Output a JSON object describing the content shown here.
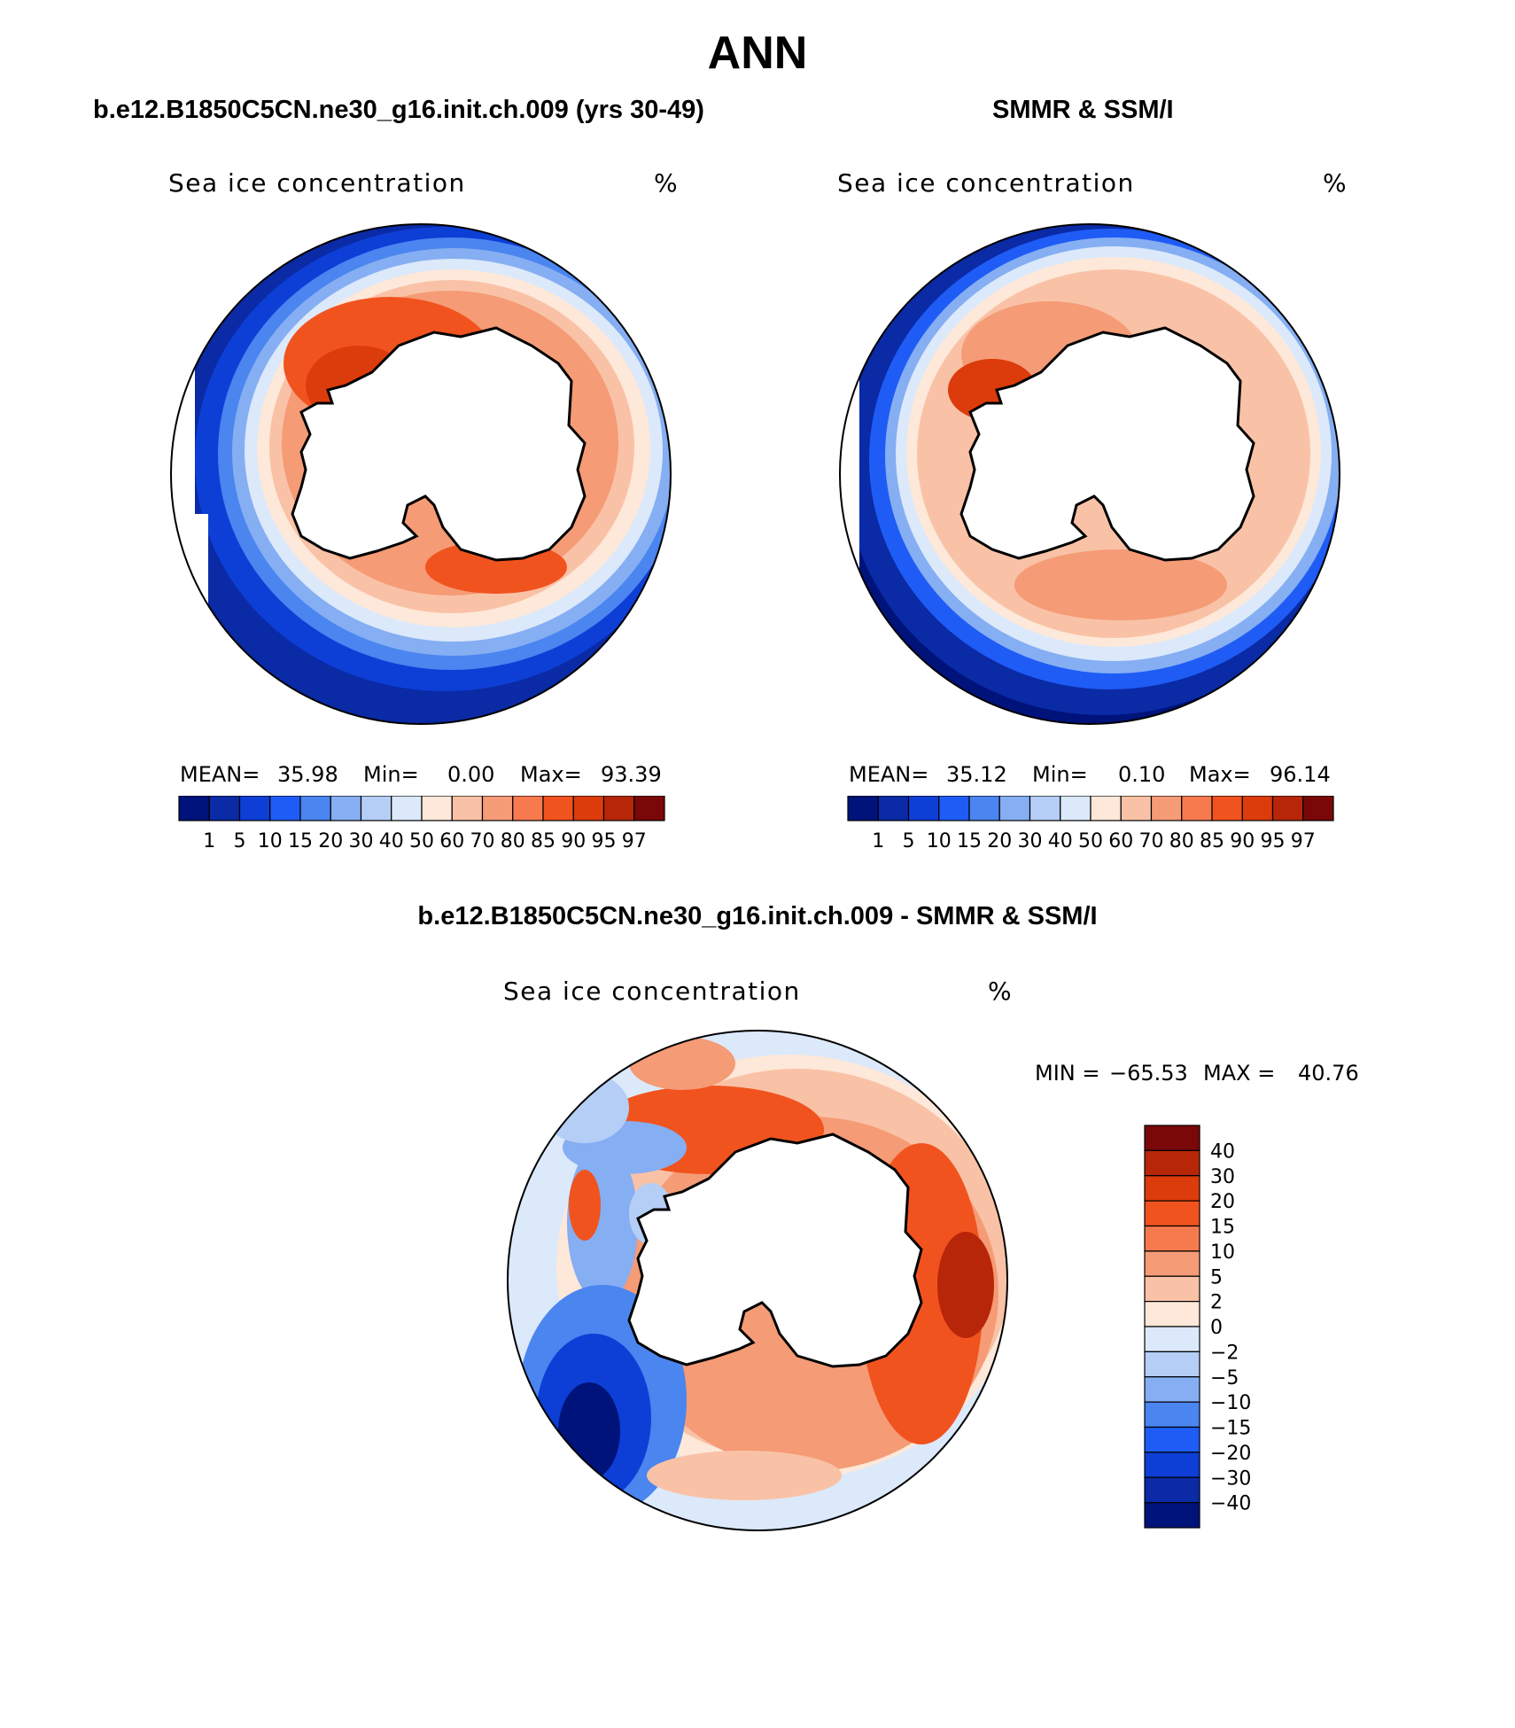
{
  "title": "ANN",
  "colorbar_palette": [
    "#00137a",
    "#0a2aa6",
    "#0d3fd6",
    "#1e5cf5",
    "#4a85f0",
    "#86aef2",
    "#b4cef6",
    "#dbe9fb",
    "#fde8d9",
    "#f9c2a6",
    "#f59b76",
    "#f77a4e",
    "#f1531f",
    "#dc3b0b",
    "#b8260a",
    "#7a0808"
  ],
  "diff_palette": [
    "#00137a",
    "#0a2aa6",
    "#0d3fd6",
    "#1e5cf5",
    "#4a85f0",
    "#86aef2",
    "#b4cef6",
    "#dbe9fb",
    "#fde8d9",
    "#f9c2a6",
    "#f59b76",
    "#f77a4e",
    "#f1531f",
    "#dc3b0b",
    "#b8260a",
    "#7a0808"
  ],
  "chart_data": [
    {
      "type": "heatmap",
      "title": "b.e12.B1850C5CN.ne30_g16.init.ch.009 (yrs 30-49)",
      "variable": "Sea ice concentration",
      "units": "%",
      "mean_label": "MEAN=",
      "mean": "35.98",
      "min_label": "Min=",
      "min": "0.00",
      "max_label": "Max=",
      "max": "93.39",
      "levels": [
        "1",
        "5",
        "10",
        "15",
        "20",
        "30",
        "40",
        "50",
        "60",
        "70",
        "80",
        "85",
        "90",
        "95",
        "97"
      ]
    },
    {
      "type": "heatmap",
      "title": "SMMR & SSM/I",
      "variable": "Sea ice concentration",
      "units": "%",
      "mean_label": "MEAN=",
      "mean": "35.12",
      "min_label": "Min=",
      "min": "0.10",
      "max_label": "Max=",
      "max": "96.14",
      "levels": [
        "1",
        "5",
        "10",
        "15",
        "20",
        "30",
        "40",
        "50",
        "60",
        "70",
        "80",
        "85",
        "90",
        "95",
        "97"
      ]
    },
    {
      "type": "heatmap",
      "title": "b.e12.B1850C5CN.ne30_g16.init.ch.009 - SMMR & SSM/I",
      "variable": "Sea ice concentration",
      "units": "%",
      "min_label": "MIN =",
      "min": "−65.53",
      "max_label": "MAX =",
      "max": "40.76",
      "levels": [
        "40",
        "30",
        "20",
        "15",
        "10",
        "5",
        "2",
        "0",
        "−2",
        "−5",
        "−10",
        "−15",
        "−20",
        "−30",
        "−40"
      ]
    }
  ]
}
